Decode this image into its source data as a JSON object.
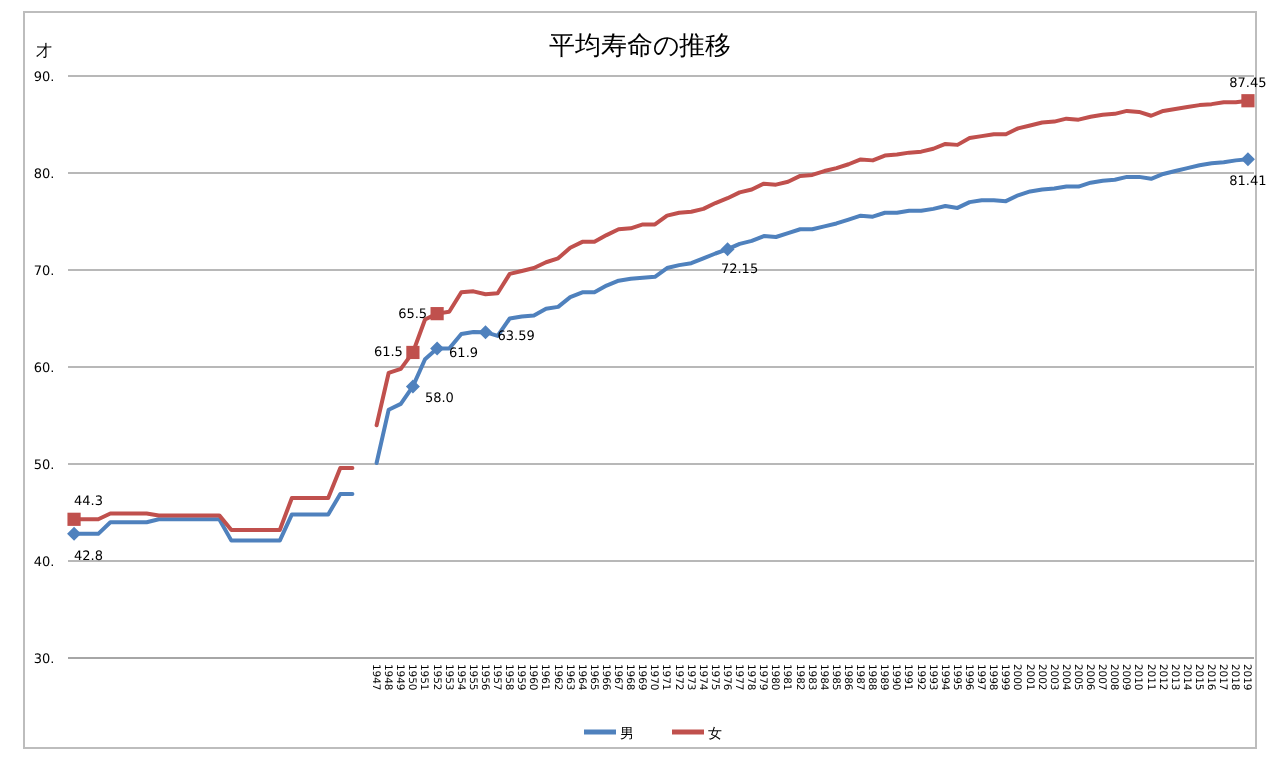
{
  "chart_data": {
    "type": "line",
    "title": "平均寿命の推移",
    "ylabel": "才",
    "categories": [
      null,
      null,
      null,
      null,
      null,
      null,
      null,
      null,
      null,
      null,
      null,
      null,
      null,
      null,
      null,
      null,
      null,
      null,
      null,
      null,
      null,
      null,
      null,
      null,
      null,
      "1947",
      "1948",
      "1949",
      "1950",
      "1951",
      "1952",
      "1953",
      "1954",
      "1955",
      "1956",
      "1957",
      "1958",
      "1959",
      "1960",
      "1961",
      "1962",
      "1963",
      "1964",
      "1965",
      "1966",
      "1967",
      "1968",
      "1969",
      "1970",
      "1971",
      "1972",
      "1973",
      "1974",
      "1975",
      "1976",
      "1977",
      "1978",
      "1979",
      "1980",
      "1981",
      "1982",
      "1983",
      "1984",
      "1985",
      "1986",
      "1987",
      "1988",
      "1989",
      "1990",
      "1991",
      "1992",
      "1993",
      "1994",
      "1995",
      "1996",
      "1997",
      "1998",
      "1999",
      "2000",
      "2001",
      "2002",
      "2003",
      "2004",
      "2005",
      "2006",
      "2007",
      "2008",
      "2009",
      "2010",
      "2011",
      "2012",
      "2013",
      "2014",
      "2015",
      "2016",
      "2017",
      "2018",
      "2019"
    ],
    "ylim": [
      30,
      90
    ],
    "yticks": [
      {
        "value": 30,
        "label": "30."
      },
      {
        "value": 40,
        "label": "40."
      },
      {
        "value": 50,
        "label": "50."
      },
      {
        "value": 60,
        "label": "60."
      },
      {
        "value": 70,
        "label": "70."
      },
      {
        "value": 80,
        "label": "80."
      },
      {
        "value": 90,
        "label": "90."
      }
    ],
    "grid": "y",
    "legend": "bottom",
    "series": [
      {
        "name": "男",
        "color": "#4f81bd",
        "values": [
          42.8,
          42.8,
          42.8,
          44.0,
          44.0,
          44.0,
          44.0,
          44.3,
          44.3,
          44.3,
          44.3,
          44.3,
          44.3,
          42.1,
          42.1,
          42.1,
          42.1,
          42.1,
          44.8,
          44.8,
          44.8,
          44.8,
          46.9,
          46.9,
          null,
          50.1,
          55.6,
          56.2,
          58.0,
          60.8,
          61.9,
          61.9,
          63.4,
          63.6,
          63.59,
          63.2,
          65.0,
          65.2,
          65.3,
          66.0,
          66.2,
          67.2,
          67.7,
          67.7,
          68.4,
          68.9,
          69.1,
          69.2,
          69.3,
          70.2,
          70.5,
          70.7,
          71.2,
          71.7,
          72.15,
          72.7,
          73.0,
          73.5,
          73.4,
          73.8,
          74.2,
          74.2,
          74.5,
          74.8,
          75.2,
          75.6,
          75.5,
          75.9,
          75.9,
          76.1,
          76.1,
          76.3,
          76.6,
          76.4,
          77.0,
          77.2,
          77.2,
          77.1,
          77.7,
          78.1,
          78.3,
          78.4,
          78.6,
          78.6,
          79.0,
          79.2,
          79.3,
          79.6,
          79.6,
          79.4,
          79.9,
          80.2,
          80.5,
          80.8,
          81.0,
          81.1,
          81.3,
          81.41
        ],
        "value_labels": [
          "42.8",
          null,
          null,
          null,
          null,
          null,
          null,
          null,
          null,
          null,
          null,
          null,
          null,
          null,
          null,
          null,
          null,
          null,
          null,
          null,
          null,
          null,
          null,
          null,
          null,
          null,
          null,
          null,
          "58.0",
          null,
          "61.9",
          null,
          null,
          null,
          "63.59",
          null,
          null,
          null,
          null,
          null,
          null,
          null,
          null,
          null,
          null,
          null,
          null,
          null,
          null,
          null,
          null,
          null,
          null,
          null,
          "72.15",
          null,
          null,
          null,
          null,
          null,
          null,
          null,
          null,
          null,
          null,
          null,
          null,
          null,
          null,
          null,
          null,
          null,
          null,
          null,
          null,
          null,
          null,
          null,
          null,
          null,
          null,
          null,
          null,
          null,
          null,
          null,
          null,
          null,
          null,
          null,
          null,
          null,
          null,
          null,
          null,
          null,
          null,
          "81.41"
        ]
      },
      {
        "name": "女",
        "color": "#c0504d",
        "values": [
          44.3,
          44.3,
          44.3,
          44.9,
          44.9,
          44.9,
          44.9,
          44.7,
          44.7,
          44.7,
          44.7,
          44.7,
          44.7,
          43.2,
          43.2,
          43.2,
          43.2,
          43.2,
          46.5,
          46.5,
          46.5,
          46.5,
          49.6,
          49.6,
          null,
          54.0,
          59.4,
          59.8,
          61.5,
          64.9,
          65.5,
          65.7,
          67.7,
          67.8,
          67.5,
          67.6,
          69.6,
          69.9,
          70.2,
          70.8,
          71.2,
          72.3,
          72.9,
          72.9,
          73.6,
          74.2,
          74.3,
          74.7,
          74.7,
          75.6,
          75.9,
          76.0,
          76.3,
          76.9,
          77.4,
          78.0,
          78.3,
          78.9,
          78.8,
          79.1,
          79.7,
          79.8,
          80.2,
          80.5,
          80.9,
          81.4,
          81.3,
          81.8,
          81.9,
          82.1,
          82.2,
          82.5,
          83.0,
          82.9,
          83.6,
          83.8,
          84.0,
          84.0,
          84.6,
          84.9,
          85.2,
          85.3,
          85.6,
          85.5,
          85.8,
          86.0,
          86.1,
          86.4,
          86.3,
          85.9,
          86.4,
          86.6,
          86.8,
          87.0,
          87.1,
          87.3,
          87.3,
          87.45
        ],
        "value_labels": [
          "44.3",
          null,
          null,
          null,
          null,
          null,
          null,
          null,
          null,
          null,
          null,
          null,
          null,
          null,
          null,
          null,
          null,
          null,
          null,
          null,
          null,
          null,
          null,
          null,
          null,
          null,
          null,
          null,
          "61.5",
          null,
          "65.5",
          null,
          null,
          null,
          null,
          null,
          null,
          null,
          null,
          null,
          null,
          null,
          null,
          null,
          null,
          null,
          null,
          null,
          null,
          null,
          null,
          null,
          null,
          null,
          null,
          null,
          null,
          null,
          null,
          null,
          null,
          null,
          null,
          null,
          null,
          null,
          null,
          null,
          null,
          null,
          null,
          null,
          null,
          null,
          null,
          null,
          null,
          null,
          null,
          null,
          null,
          null,
          null,
          null,
          null,
          null,
          null,
          null,
          null,
          null,
          null,
          null,
          null,
          null,
          null,
          null,
          null,
          "87.45"
        ]
      }
    ]
  }
}
